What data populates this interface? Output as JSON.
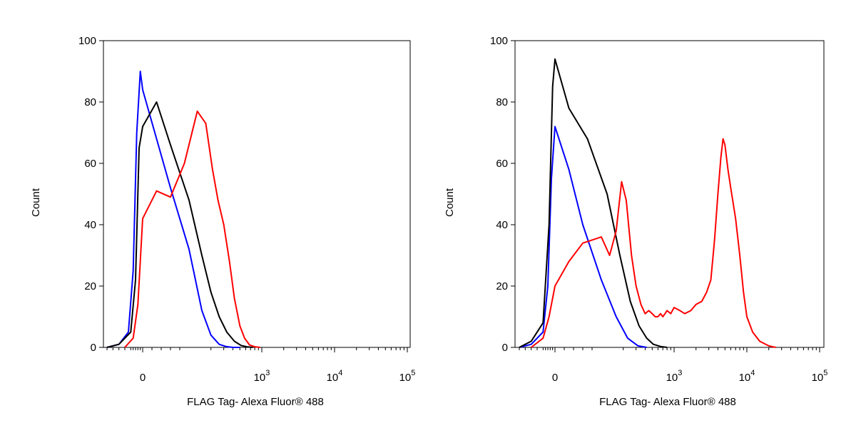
{
  "chart_data": [
    {
      "type": "line",
      "title": "",
      "xlabel": "FLAG Tag- Alexa Fluor® 488",
      "ylabel": "Count",
      "ylim": [
        0,
        100
      ],
      "y_ticks": [
        "0",
        "20",
        "40",
        "60",
        "80",
        "100"
      ],
      "x_scale": "biexponential",
      "x_ticks": [
        {
          "value": 0,
          "base": "0",
          "exp": ""
        },
        {
          "value": 1000,
          "base": "10",
          "exp": "3"
        },
        {
          "value": 10000,
          "base": "10",
          "exp": "4"
        },
        {
          "value": 100000,
          "base": "10",
          "exp": "5"
        }
      ],
      "grid": false,
      "series": [
        {
          "color": "#0000ff",
          "x": [
            -300,
            -200,
            -120,
            -80,
            -50,
            -20,
            0,
            30,
            60,
            100,
            150,
            200,
            260,
            320,
            400,
            500
          ],
          "y": [
            0,
            1,
            5,
            25,
            70,
            90,
            84,
            68,
            52,
            32,
            12,
            4,
            1,
            0.3,
            0,
            0
          ]
        },
        {
          "color": "#000000",
          "x": [
            -300,
            -200,
            -100,
            -60,
            -30,
            0,
            30,
            60,
            100,
            150,
            200,
            260,
            330,
            420,
            520,
            620,
            750
          ],
          "y": [
            0,
            1,
            5,
            22,
            65,
            72,
            80,
            66,
            48,
            30,
            18,
            10,
            5,
            2,
            0.6,
            0.2,
            0
          ]
        },
        {
          "color": "#ff0000",
          "x": [
            -150,
            -80,
            -40,
            0,
            30,
            60,
            90,
            130,
            170,
            210,
            250,
            300,
            360,
            420,
            500,
            580,
            680,
            800,
            950
          ],
          "y": [
            0,
            3,
            14,
            42,
            51,
            49,
            60,
            77,
            73,
            58,
            48,
            40,
            28,
            16,
            7,
            3,
            0.8,
            0.2,
            0
          ]
        }
      ]
    },
    {
      "type": "line",
      "title": "",
      "xlabel": "FLAG Tag- Alexa Fluor® 488",
      "ylabel": "Count",
      "ylim": [
        0,
        100
      ],
      "y_ticks": [
        "0",
        "20",
        "40",
        "60",
        "80",
        "100"
      ],
      "x_scale": "biexponential",
      "x_ticks": [
        {
          "value": 0,
          "base": "0",
          "exp": ""
        },
        {
          "value": 1000,
          "base": "10",
          "exp": "3"
        },
        {
          "value": 10000,
          "base": "10",
          "exp": "4"
        },
        {
          "value": 100000,
          "base": "10",
          "exp": "5"
        }
      ],
      "grid": false,
      "series": [
        {
          "color": "#0000ff",
          "x": [
            -300,
            -200,
            -100,
            -60,
            -30,
            0,
            30,
            60,
            100,
            160,
            230,
            320,
            420
          ],
          "y": [
            0,
            1,
            5,
            20,
            55,
            72,
            58,
            40,
            22,
            10,
            3,
            0.5,
            0
          ]
        },
        {
          "color": "#000000",
          "x": [
            -300,
            -200,
            -100,
            -50,
            -20,
            0,
            30,
            70,
            120,
            180,
            250,
            330,
            420,
            520,
            650,
            800
          ],
          "y": [
            0,
            2,
            8,
            40,
            85,
            94,
            78,
            68,
            50,
            30,
            15,
            7,
            3,
            1,
            0.3,
            0
          ]
        },
        {
          "color": "#ff0000",
          "x": [
            -200,
            -100,
            -50,
            0,
            30,
            60,
            100,
            130,
            160,
            190,
            220,
            260,
            300,
            350,
            400,
            450,
            500,
            550,
            600,
            650,
            700,
            750,
            800,
            900,
            1000,
            1200,
            1400,
            1700,
            2000,
            2400,
            2800,
            3200,
            3600,
            4000,
            4400,
            4700,
            5000,
            5500,
            6000,
            7000,
            8000,
            9000,
            10000,
            12000,
            15000,
            20000,
            25000
          ],
          "y": [
            0,
            3,
            10,
            20,
            28,
            34,
            36,
            30,
            38,
            54,
            48,
            30,
            20,
            14,
            11,
            12,
            11,
            10,
            10,
            11,
            10,
            11,
            12,
            11,
            13,
            12,
            11,
            12,
            14,
            15,
            18,
            22,
            35,
            50,
            62,
            68,
            66,
            58,
            52,
            42,
            30,
            18,
            10,
            5,
            2,
            0.5,
            0
          ]
        }
      ]
    }
  ]
}
